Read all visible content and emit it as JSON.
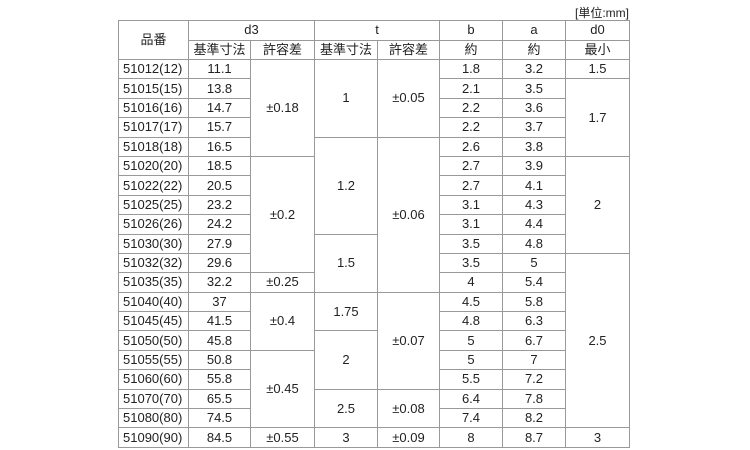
{
  "unit_label": "[単位:mm]",
  "header": {
    "part_no": "品番",
    "d3": "d3",
    "t": "t",
    "b": "b",
    "a": "a",
    "d0": "d0",
    "d3_basic": "基準寸法",
    "d3_tol": "許容差",
    "t_basic": "基準寸法",
    "t_tol": "許容差",
    "b_sub": "約",
    "a_sub": "約",
    "d0_sub": "最小"
  },
  "part_no": [
    "51012(12)",
    "51015(15)",
    "51016(16)",
    "51017(17)",
    "51018(18)",
    "51020(20)",
    "51022(22)",
    "51025(25)",
    "51026(26)",
    "51030(30)",
    "51032(32)",
    "51035(35)",
    "51040(40)",
    "51045(45)",
    "51050(50)",
    "51055(55)",
    "51060(60)",
    "51070(70)",
    "51080(80)",
    "51090(90)"
  ],
  "d3_basic": [
    "11.1",
    "13.8",
    "14.7",
    "15.7",
    "16.5",
    "18.5",
    "20.5",
    "23.2",
    "24.2",
    "27.9",
    "29.6",
    "32.2",
    "37",
    "41.5",
    "45.8",
    "50.8",
    "55.8",
    "65.5",
    "74.5",
    "84.5"
  ],
  "d3_tol": [
    {
      "v": "±0.18",
      "rows": 5
    },
    {
      "v": "±0.2",
      "rows": 6
    },
    {
      "v": "±0.25",
      "rows": 1
    },
    {
      "v": "±0.4",
      "rows": 3
    },
    {
      "v": "±0.45",
      "rows": 4
    },
    {
      "v": "±0.55",
      "rows": 1
    }
  ],
  "t_basic": [
    {
      "v": "1",
      "rows": 4
    },
    {
      "v": "1.2",
      "rows": 5
    },
    {
      "v": "1.5",
      "rows": 3
    },
    {
      "v": "1.75",
      "rows": 2
    },
    {
      "v": "2",
      "rows": 3
    },
    {
      "v": "2.5",
      "rows": 2
    },
    {
      "v": "3",
      "rows": 1
    }
  ],
  "t_tol": [
    {
      "v": "±0.05",
      "rows": 4
    },
    {
      "v": "±0.06",
      "rows": 8
    },
    {
      "v": "±0.07",
      "rows": 5
    },
    {
      "v": "±0.08",
      "rows": 2
    },
    {
      "v": "±0.09",
      "rows": 1
    }
  ],
  "b": [
    "1.8",
    "2.1",
    "2.2",
    "2.2",
    "2.6",
    "2.7",
    "2.7",
    "3.1",
    "3.1",
    "3.5",
    "3.5",
    "4",
    "4.5",
    "4.8",
    "5",
    "5",
    "5.5",
    "6.4",
    "7.4",
    "8"
  ],
  "a": [
    "3.2",
    "3.5",
    "3.6",
    "3.7",
    "3.8",
    "3.9",
    "4.1",
    "4.3",
    "4.4",
    "4.8",
    "5",
    "5.4",
    "5.8",
    "6.3",
    "6.7",
    "7",
    "7.2",
    "7.8",
    "8.2",
    "8.7"
  ],
  "d0": [
    {
      "v": "1.5",
      "rows": 1
    },
    {
      "v": "1.7",
      "rows": 4
    },
    {
      "v": "2",
      "rows": 5
    },
    {
      "v": "2.5",
      "rows": 9
    },
    {
      "v": "3",
      "rows": 1
    }
  ]
}
